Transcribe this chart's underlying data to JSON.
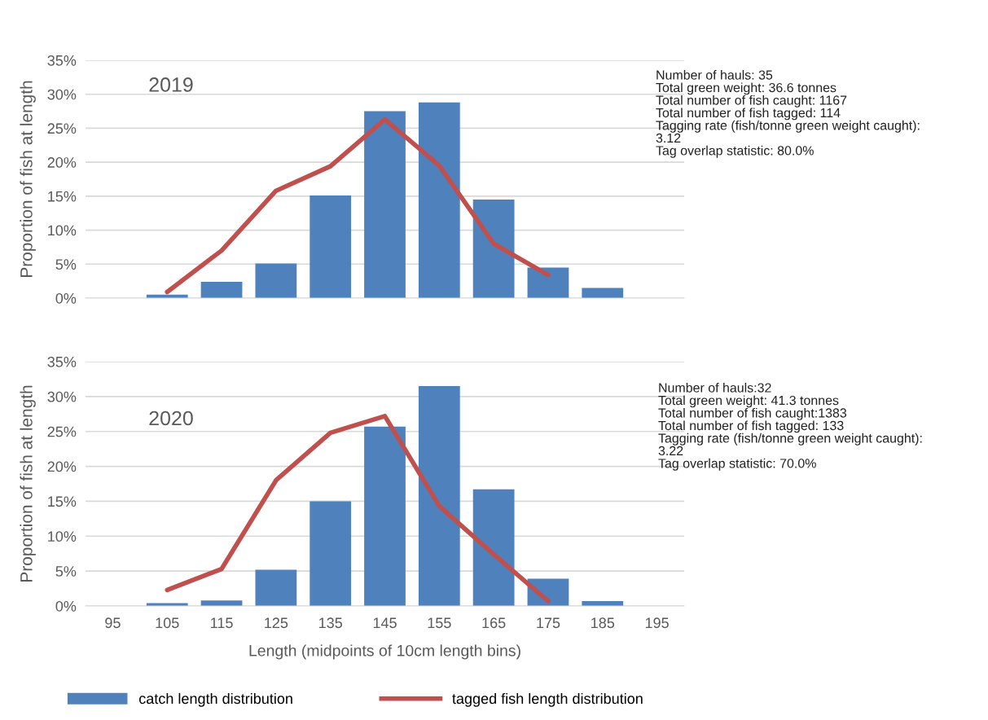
{
  "chart_data": [
    {
      "type": "bar",
      "categories": [
        "95",
        "105",
        "115",
        "125",
        "135",
        "145",
        "155",
        "165",
        "175",
        "185",
        "195"
      ],
      "ylabel": "Proportion of fish at length",
      "ylim": [
        0,
        35
      ],
      "yticks": [
        {
          "value": 0,
          "label": "0%"
        },
        {
          "value": 5,
          "label": "5%"
        },
        {
          "value": 10,
          "label": "10%"
        },
        {
          "value": 15,
          "label": "15%"
        },
        {
          "value": 20,
          "label": "20%"
        },
        {
          "value": 25,
          "label": "25%"
        },
        {
          "value": 30,
          "label": "30%"
        },
        {
          "value": 35,
          "label": "35%"
        }
      ],
      "grid": "y",
      "legend": false,
      "tick_labels": "y",
      "series": [
        {
          "color": "#4f81bd",
          "values": [
            null,
            0.5,
            2.4,
            5.1,
            15.1,
            27.5,
            28.8,
            14.5,
            4.5,
            1.5,
            null
          ]
        },
        {
          "type": "line",
          "color": "#c0504d",
          "values": [
            null,
            0.9,
            7.0,
            15.8,
            19.4,
            26.3,
            19.5,
            8.0,
            3.4,
            null,
            null
          ]
        }
      ],
      "annotations": [
        "2019",
        "Number of hauls: 35\nTotal green weight: 36.6 tonnes\nTotal number of fish caught: 1167\nTotal number of fish tagged: 114\nTagging rate (fish/tonne green weight caught):\n3.12\nTag overlap statistic: 80.0%"
      ]
    },
    {
      "type": "bar",
      "categories": [
        "95",
        "105",
        "115",
        "125",
        "135",
        "145",
        "155",
        "165",
        "175",
        "185",
        "195"
      ],
      "xlabel": "Length (midpoints of 10cm length bins)",
      "ylabel": "Proportion of fish at length",
      "ylim": [
        0,
        35
      ],
      "yticks": [
        {
          "value": 0,
          "label": "0%"
        },
        {
          "value": 5,
          "label": "5%"
        },
        {
          "value": 10,
          "label": "10%"
        },
        {
          "value": 15,
          "label": "15%"
        },
        {
          "value": 20,
          "label": "20%"
        },
        {
          "value": 25,
          "label": "25%"
        },
        {
          "value": 30,
          "label": "30%"
        },
        {
          "value": 35,
          "label": "35%"
        }
      ],
      "grid": "y",
      "legend": "bottom",
      "series": [
        {
          "name": "catch length distribution",
          "color": "#4f81bd",
          "values": [
            null,
            0.4,
            0.8,
            5.2,
            15.0,
            25.7,
            31.5,
            16.7,
            3.9,
            0.7,
            null
          ]
        },
        {
          "type": "line",
          "name": "tagged fish length distribution",
          "color": "#c0504d",
          "values": [
            null,
            2.3,
            5.3,
            18.0,
            24.8,
            27.2,
            14.3,
            7.4,
            0.7,
            null,
            null
          ]
        }
      ],
      "annotations": [
        "2020",
        "Number of hauls:32\nTotal green weight: 41.3 tonnes\nTotal number of fish caught:1383\nTotal number of fish tagged: 133\nTagging rate (fish/tonne green weight caught):\n3.22\nTag overlap statistic: 70.0%"
      ]
    }
  ]
}
